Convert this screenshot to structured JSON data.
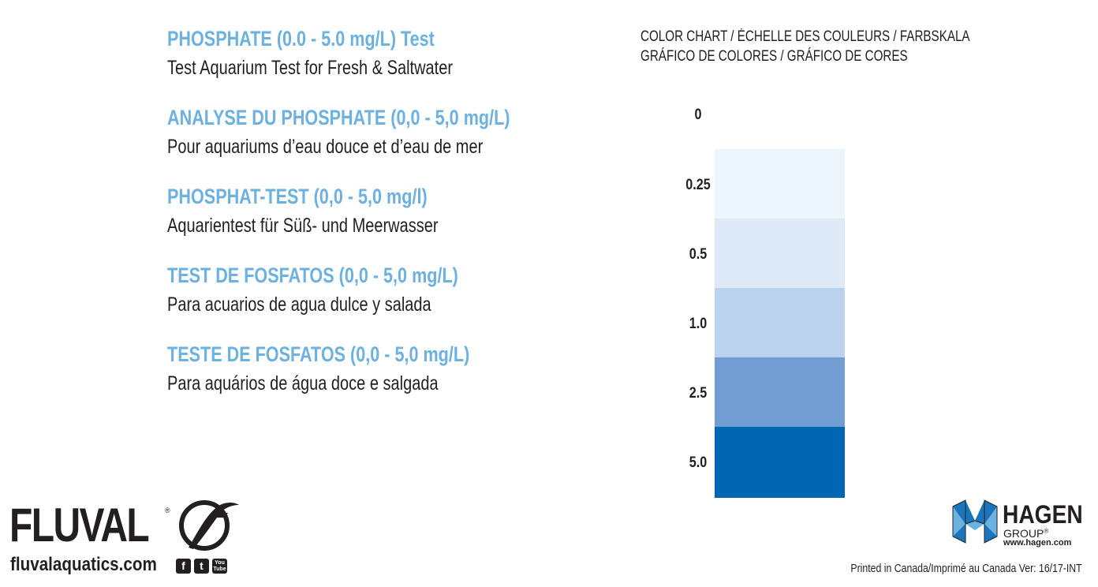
{
  "blocks": [
    {
      "title": "PHOSPHATE (0.0 - 5.0 mg/L) Test",
      "subtitle": "Test Aquarium Test for Fresh & Saltwater"
    },
    {
      "title": "ANALYSE DU PHOSPHATE (0,0 - 5,0 mg/L)",
      "subtitle": "Pour aquariums d’eau douce et d’eau de mer"
    },
    {
      "title": "PHOSPHAT-TEST (0,0 - 5,0 mg/l)",
      "subtitle": "Aquarientest für Süß- und Meerwasser"
    },
    {
      "title": "TEST DE FOSFATOS (0,0 - 5,0 mg/L)",
      "subtitle": "Para acuarios de agua dulce y salada"
    },
    {
      "title": "TESTE DE FOSFATOS (0,0 - 5,0 mg/L)",
      "subtitle": "Para aquários de água doce e salgada"
    }
  ],
  "color_chart": {
    "heading_line1": "COLOR CHART  / ÉCHELLE DES COULEURS / FARBSKALA",
    "heading_line2": "GRÁFICO DE COLORES / GRÁFICO DE CORES",
    "levels": [
      {
        "label": "0",
        "color": "#ffffff"
      },
      {
        "label": "0.25",
        "color": "#eef6fd"
      },
      {
        "label": "0.5",
        "color": "#deeaf7"
      },
      {
        "label": "1.0",
        "color": "#bad2ee"
      },
      {
        "label": "2.5",
        "color": "#719dd3"
      },
      {
        "label": "5.0",
        "color": "#0066b3"
      }
    ]
  },
  "brand": {
    "fluval_name": "FLUVAL",
    "fluval_reg": "®",
    "fluval_url": "fluvalaquatics.com",
    "social_icons": [
      "facebook-icon",
      "twitter-icon",
      "youtube-icon"
    ],
    "social_glyphs": [
      "f",
      "t",
      "You Tube"
    ],
    "hagen_name": "HAGEN",
    "hagen_group": "GROUP",
    "hagen_reg": "®",
    "hagen_url": "www.hagen.com"
  },
  "footer": {
    "printed": "Printed in Canada/Imprimé au Canada Ver: 16/17-INT"
  },
  "colors": {
    "title_blue": "#6cb1df",
    "text_dark": "#231f20",
    "hagen_light_blue": "#6cb1df",
    "hagen_dark_blue": "#1b75bb"
  }
}
